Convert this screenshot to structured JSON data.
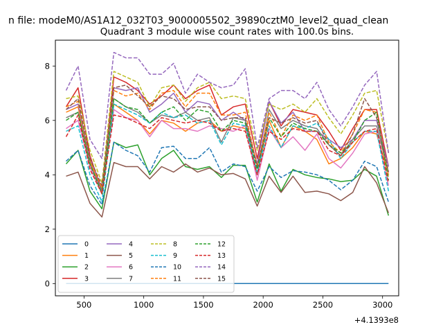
{
  "suptitle": "n file: modeM0/AS1A12_032T03_9000005502_39890cztM0_level2_quad_clean",
  "title": "Quadrant 3 module wise count rates with 100.0s bins.",
  "chart_data": {
    "type": "line",
    "xlim": [
      260,
      3135
    ],
    "ylim": [
      -0.45,
      8.95
    ],
    "x_offset_label": "+4.1393e8",
    "xticks": [
      500,
      1000,
      1500,
      2000,
      2500,
      3000
    ],
    "xtick_labels": [
      "500",
      "1000",
      "1500",
      "2000",
      "2500",
      "3000"
    ],
    "yticks": [
      0,
      2,
      4,
      6,
      8
    ],
    "ytick_labels": [
      "0",
      "2",
      "4",
      "6",
      "8"
    ],
    "legend_position": "lower-left",
    "legend_ncol": 4,
    "x": [
      350,
      450,
      550,
      650,
      750,
      850,
      950,
      1050,
      1150,
      1250,
      1350,
      1450,
      1550,
      1650,
      1750,
      1850,
      1950,
      2050,
      2150,
      2250,
      2350,
      2450,
      2550,
      2650,
      2750,
      2850,
      2950,
      3050
    ],
    "series": [
      {
        "name": "0",
        "color": "#1f77b4",
        "dash": "solid",
        "values": [
          0,
          0,
          0,
          0,
          0,
          0,
          0,
          0,
          0,
          0,
          0,
          0,
          0,
          0,
          0,
          0,
          0,
          0,
          0,
          0,
          0,
          0,
          0,
          0,
          0,
          0,
          0,
          0
        ]
      },
      {
        "name": "1",
        "color": "#ff7f0e",
        "dash": "solid",
        "values": [
          6.3,
          6.5,
          4.5,
          3.4,
          6.6,
          6.3,
          6.0,
          5.5,
          6.0,
          5.9,
          5.6,
          5.9,
          6.0,
          5.6,
          5.8,
          5.7,
          4.0,
          6.0,
          5.0,
          5.8,
          5.6,
          5.3,
          4.4,
          4.6,
          5.0,
          5.6,
          5.5,
          4.0
        ]
      },
      {
        "name": "2",
        "color": "#2ca02c",
        "dash": "solid",
        "values": [
          4.4,
          4.9,
          3.4,
          2.75,
          5.2,
          5.0,
          5.1,
          4.0,
          4.6,
          4.9,
          4.3,
          4.2,
          4.3,
          3.9,
          4.35,
          4.35,
          3.0,
          4.4,
          3.4,
          4.2,
          4.0,
          3.9,
          3.85,
          3.75,
          3.8,
          4.2,
          3.95,
          2.5
        ]
      },
      {
        "name": "3",
        "color": "#d62728",
        "dash": "solid",
        "values": [
          6.5,
          7.2,
          4.7,
          3.4,
          7.6,
          7.4,
          7.1,
          6.6,
          6.9,
          7.3,
          6.8,
          7.1,
          7.3,
          6.2,
          6.5,
          6.6,
          4.6,
          6.7,
          5.8,
          6.4,
          6.3,
          6.2,
          5.6,
          4.9,
          5.7,
          6.4,
          6.4,
          4.3
        ]
      },
      {
        "name": "4",
        "color": "#9467bd",
        "dash": "solid",
        "values": [
          6.4,
          6.6,
          4.6,
          3.5,
          7.2,
          7.1,
          7.2,
          6.3,
          6.6,
          7.0,
          6.3,
          6.7,
          6.6,
          6.0,
          6.3,
          6.0,
          4.4,
          6.7,
          5.9,
          6.3,
          5.6,
          5.6,
          5.3,
          5.0,
          5.3,
          6.0,
          6.0,
          4.3
        ]
      },
      {
        "name": "5",
        "color": "#8c564b",
        "dash": "solid",
        "values": [
          3.95,
          4.1,
          2.95,
          2.45,
          4.45,
          4.3,
          4.3,
          3.85,
          4.3,
          4.1,
          4.4,
          4.1,
          4.25,
          4.0,
          4.05,
          3.85,
          2.85,
          3.95,
          3.35,
          3.95,
          3.35,
          3.4,
          3.3,
          3.05,
          3.35,
          4.3,
          3.7,
          2.6
        ]
      },
      {
        "name": "6",
        "color": "#e377c2",
        "dash": "solid",
        "values": [
          5.7,
          6.0,
          4.3,
          3.3,
          6.4,
          6.1,
          6.0,
          5.4,
          6.0,
          5.7,
          5.7,
          5.6,
          5.8,
          5.7,
          5.6,
          5.8,
          3.8,
          5.7,
          5.0,
          5.4,
          4.9,
          5.5,
          4.6,
          4.25,
          4.8,
          5.5,
          5.6,
          3.6
        ]
      },
      {
        "name": "7",
        "color": "#7f7f7f",
        "dash": "solid",
        "values": [
          6.1,
          6.3,
          4.4,
          3.4,
          6.8,
          6.5,
          6.3,
          5.9,
          6.2,
          6.1,
          6.3,
          6.0,
          6.1,
          5.2,
          6.1,
          6.0,
          4.0,
          6.4,
          5.7,
          6.0,
          5.8,
          5.7,
          5.1,
          4.7,
          5.3,
          5.8,
          5.8,
          4.1
        ]
      },
      {
        "name": "8",
        "color": "#bcbd22",
        "dash": "dashed",
        "values": [
          6.8,
          6.9,
          4.9,
          3.7,
          7.8,
          7.6,
          7.4,
          6.5,
          7.2,
          7.3,
          6.7,
          7.2,
          7.4,
          6.8,
          6.9,
          6.8,
          4.9,
          6.6,
          6.4,
          6.6,
          6.3,
          6.8,
          6.1,
          5.5,
          6.2,
          7.0,
          7.1,
          4.8
        ]
      },
      {
        "name": "9",
        "color": "#17becf",
        "dash": "dashed",
        "values": [
          5.6,
          5.8,
          4.0,
          3.0,
          6.6,
          6.4,
          6.2,
          5.9,
          6.3,
          6.1,
          6.2,
          5.9,
          6.0,
          5.1,
          5.9,
          5.8,
          4.1,
          5.8,
          5.0,
          5.8,
          5.7,
          5.9,
          5.3,
          4.6,
          5.2,
          5.6,
          5.6,
          3.4
        ]
      },
      {
        "name": "10",
        "color": "#1f77b4",
        "dash": "dashed",
        "values": [
          4.5,
          4.9,
          3.6,
          2.9,
          5.2,
          4.9,
          4.7,
          4.1,
          5.0,
          5.05,
          4.6,
          4.6,
          5.0,
          4.1,
          4.4,
          4.3,
          3.4,
          4.3,
          3.9,
          4.15,
          4.1,
          4.0,
          3.8,
          3.45,
          3.8,
          4.5,
          4.3,
          3.0
        ]
      },
      {
        "name": "11",
        "color": "#ff7f0e",
        "dash": "dashed",
        "values": [
          6.5,
          6.7,
          4.6,
          3.5,
          7.1,
          6.9,
          7.0,
          6.4,
          7.0,
          7.1,
          6.5,
          7.0,
          7.0,
          6.2,
          6.2,
          6.3,
          4.3,
          6.3,
          5.4,
          6.2,
          6.0,
          6.2,
          5.2,
          4.8,
          5.5,
          6.4,
          6.3,
          3.9
        ]
      },
      {
        "name": "12",
        "color": "#2ca02c",
        "dash": "dashed",
        "values": [
          6.0,
          6.3,
          4.4,
          3.3,
          6.8,
          6.5,
          6.4,
          5.9,
          6.3,
          6.5,
          6.0,
          6.4,
          6.3,
          5.6,
          6.0,
          5.9,
          4.2,
          6.1,
          5.4,
          5.9,
          5.7,
          5.6,
          5.1,
          4.8,
          5.2,
          6.0,
          6.3,
          3.8
        ]
      },
      {
        "name": "13",
        "color": "#d62728",
        "dash": "dashed",
        "values": [
          5.4,
          6.2,
          4.2,
          3.3,
          6.2,
          6.1,
          5.9,
          5.7,
          6.1,
          6.0,
          5.9,
          6.0,
          5.9,
          5.6,
          5.7,
          5.6,
          4.0,
          5.6,
          5.3,
          5.7,
          5.6,
          5.6,
          4.9,
          4.7,
          5.2,
          5.6,
          5.7,
          3.7
        ]
      },
      {
        "name": "14",
        "color": "#9467bd",
        "dash": "dashed",
        "values": [
          7.1,
          8.0,
          5.3,
          4.6,
          8.5,
          8.3,
          8.3,
          7.7,
          7.7,
          8.1,
          7.0,
          7.7,
          7.4,
          7.2,
          7.3,
          7.9,
          5.0,
          6.8,
          7.1,
          7.1,
          6.8,
          7.4,
          6.4,
          5.8,
          6.5,
          7.3,
          7.8,
          4.8
        ]
      },
      {
        "name": "15",
        "color": "#8c564b",
        "dash": "dashed",
        "values": [
          6.4,
          6.8,
          4.6,
          3.6,
          7.2,
          7.3,
          6.9,
          6.5,
          6.9,
          6.8,
          6.4,
          6.5,
          6.5,
          6.0,
          6.1,
          6.1,
          4.3,
          6.1,
          5.9,
          6.1,
          5.9,
          6.0,
          5.1,
          4.7,
          5.5,
          6.8,
          6.1,
          4.1
        ]
      }
    ]
  }
}
